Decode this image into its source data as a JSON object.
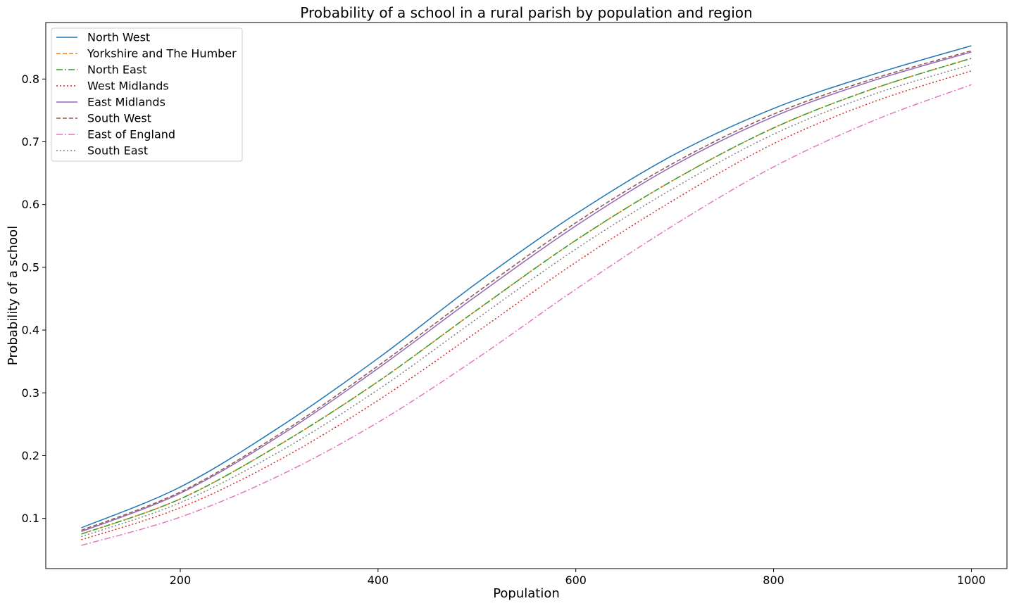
{
  "chart_data": {
    "type": "line",
    "title": "Probability of a school in a rural parish by population and region",
    "xlabel": "Population",
    "ylabel": "Probability of a school",
    "xlim": [
      64,
      1036
    ],
    "ylim": [
      0.02,
      0.89
    ],
    "xticks": [
      200,
      400,
      600,
      800,
      1000
    ],
    "yticks": [
      0.1,
      0.2,
      0.3,
      0.4,
      0.5,
      0.6,
      0.7,
      0.8
    ],
    "grid": false,
    "legend_position": "top-left",
    "x": [
      100,
      200,
      300,
      400,
      500,
      600,
      700,
      800,
      900,
      1000
    ],
    "series": [
      {
        "name": "North West",
        "color": "#1f77b4",
        "dash": "solid",
        "values": [
          0.085,
          0.15,
          0.245,
          0.355,
          0.475,
          0.585,
          0.68,
          0.753,
          0.807,
          0.853
        ]
      },
      {
        "name": "Yorkshire and The Humber",
        "color": "#ff7f0e",
        "dash": "dashed",
        "values": [
          0.075,
          0.131,
          0.217,
          0.318,
          0.432,
          0.543,
          0.64,
          0.722,
          0.784,
          0.833
        ]
      },
      {
        "name": "North East",
        "color": "#2ca02c",
        "dash": "dashdot",
        "values": [
          0.075,
          0.131,
          0.217,
          0.318,
          0.432,
          0.543,
          0.64,
          0.722,
          0.784,
          0.833
        ]
      },
      {
        "name": "West Midlands",
        "color": "#d62728",
        "dash": "dotted",
        "values": [
          0.066,
          0.117,
          0.193,
          0.288,
          0.397,
          0.508,
          0.608,
          0.697,
          0.763,
          0.813
        ]
      },
      {
        "name": "East Midlands",
        "color": "#9467bd",
        "dash": "solid",
        "values": [
          0.079,
          0.14,
          0.231,
          0.339,
          0.455,
          0.566,
          0.663,
          0.74,
          0.797,
          0.843
        ]
      },
      {
        "name": "South West",
        "color": "#8c564b",
        "dash": "dashed",
        "values": [
          0.081,
          0.142,
          0.234,
          0.343,
          0.46,
          0.571,
          0.667,
          0.744,
          0.8,
          0.845
        ]
      },
      {
        "name": "East of England",
        "color": "#e377c2",
        "dash": "dashdot",
        "values": [
          0.057,
          0.102,
          0.168,
          0.253,
          0.355,
          0.465,
          0.568,
          0.66,
          0.733,
          0.791
        ]
      },
      {
        "name": "South East",
        "color": "#7f7f7f",
        "dash": "dotted",
        "values": [
          0.071,
          0.125,
          0.206,
          0.305,
          0.418,
          0.529,
          0.627,
          0.712,
          0.775,
          0.823
        ]
      }
    ]
  }
}
